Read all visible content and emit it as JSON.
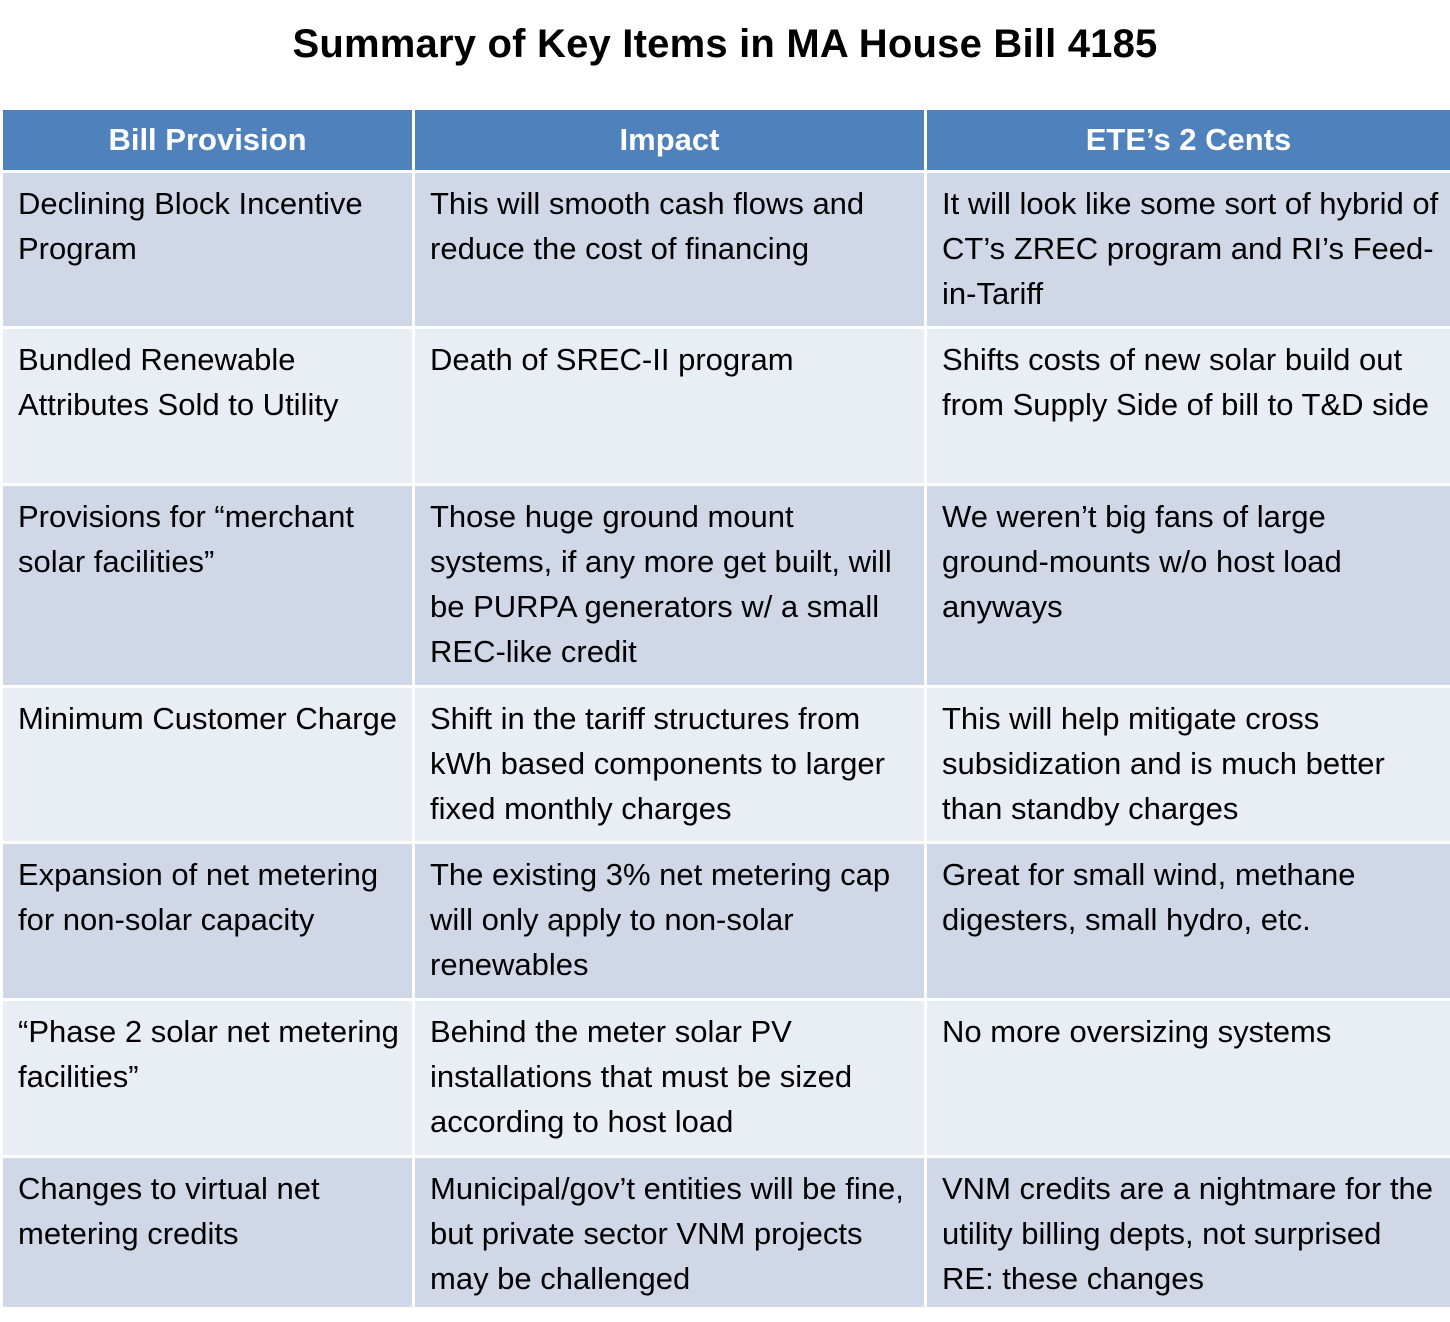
{
  "title": "Summary of Key Items in MA House Bill 4185",
  "table": {
    "headers": [
      "Bill Provision",
      "Impact",
      "ETE’s 2 Cents"
    ],
    "rows": [
      {
        "provision": "Declining Block Incentive Program",
        "impact": "This will smooth cash flows and reduce the cost of financing",
        "comment": "It will look like some sort of hybrid of CT’s ZREC program and RI’s Feed-in-Tariff"
      },
      {
        "provision": "Bundled Renewable Attributes Sold to Utility",
        "impact": "Death of SREC-II program",
        "comment": "Shifts costs of new solar build out from Supply Side of bill to T&D side"
      },
      {
        "provision": "Provisions for “merchant solar facilities”",
        "impact": "Those huge ground mount systems, if any more get built, will be PURPA generators w/ a small REC-like credit",
        "comment": "We weren’t big fans of large ground-mounts w/o host load anyways"
      },
      {
        "provision": "Minimum Customer Charge",
        "impact": "Shift in the tariff structures from kWh based components to larger fixed monthly charges",
        "comment": "This will help mitigate cross subsidization and is much better than standby charges"
      },
      {
        "provision": "Expansion of net metering for non-solar capacity",
        "impact": "The existing 3% net metering cap will only apply to non-solar renewables",
        "comment": "Great for small wind, methane digesters, small hydro, etc."
      },
      {
        "provision": "“Phase 2 solar net metering facilities”",
        "impact": "Behind the meter solar PV installations that must be sized according to host load",
        "comment": "No more oversizing systems"
      },
      {
        "provision": "Changes to virtual net metering credits",
        "impact": "Municipal/gov’t entities will be fine, but private sector VNM projects may be challenged",
        "comment": "VNM credits are a nightmare for the utility billing depts, not surprised RE: these changes"
      }
    ]
  },
  "colors": {
    "header_bg": "#4f81bd",
    "row_dark": "#d0d8e8",
    "row_light": "#e9edf4",
    "border": "#ffffff"
  }
}
